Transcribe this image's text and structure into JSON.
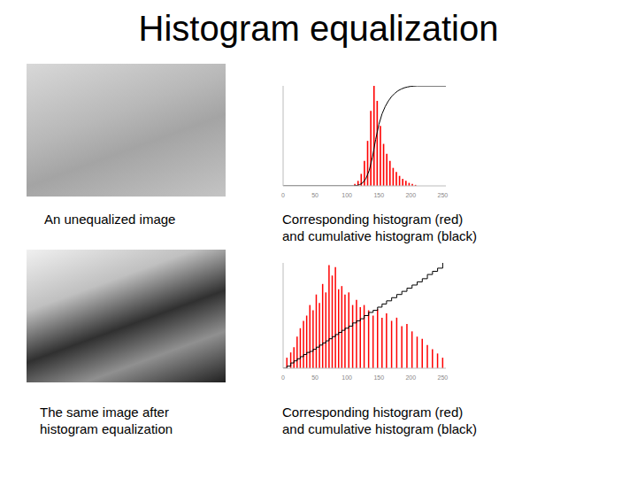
{
  "title": "Histogram equalization",
  "images": [
    {
      "caption": [
        "An unequalized image"
      ]
    },
    {
      "caption": [
        "The same image after",
        "histogram equalization"
      ]
    }
  ],
  "chart_data": [
    {
      "type": "histogram",
      "caption": [
        "Corresponding histogram (red)",
        "and cumulative histogram (black)"
      ],
      "bins": [
        0,
        5,
        10,
        15,
        20,
        25,
        30,
        35,
        40,
        45,
        50,
        55,
        60,
        65,
        70,
        75,
        80,
        85,
        90,
        95,
        100,
        105,
        110,
        115,
        120,
        125,
        130,
        135,
        140,
        145,
        150,
        155,
        160,
        165,
        170,
        175,
        180,
        185,
        190,
        195,
        200,
        205,
        210,
        215,
        220,
        225,
        230,
        235,
        240,
        245,
        250,
        255
      ],
      "values": [
        0,
        0,
        0,
        0,
        0,
        0,
        0,
        0,
        0,
        0,
        0,
        0,
        0,
        0,
        0,
        0,
        0,
        0,
        0,
        0,
        0,
        0,
        2,
        5,
        12,
        25,
        45,
        75,
        100,
        85,
        60,
        42,
        32,
        25,
        18,
        14,
        10,
        7,
        5,
        3,
        2,
        1,
        0,
        0,
        0,
        0,
        0,
        0,
        0,
        0,
        0
      ],
      "color": "#ff0000",
      "xlim": [
        0,
        255
      ],
      "xticks": [
        0,
        50,
        100,
        150,
        200,
        250
      ],
      "ylim": [
        0,
        100
      ],
      "tick_labels": "x",
      "y2lim": [
        0,
        100
      ],
      "cumulative": {
        "x": [
          0,
          110,
          115,
          120,
          125,
          130,
          135,
          140,
          145,
          150,
          155,
          160,
          165,
          170,
          175,
          180,
          185,
          190,
          195,
          200,
          205,
          210,
          255
        ],
        "values": [
          0,
          0,
          0.4,
          1.2,
          3.3,
          7.7,
          15.7,
          28.9,
          46.5,
          61.4,
          72,
          79.4,
          85,
          89.4,
          92.6,
          95.1,
          96.8,
          98.1,
          98.9,
          99.5,
          99.8,
          100,
          100
        ],
        "color": "#000000",
        "axis": "y2",
        "line_style": "solid"
      }
    },
    {
      "type": "histogram",
      "caption": [
        "Corresponding histogram (red)",
        "and cumulative histogram (black)"
      ],
      "x": [
        6,
        12,
        17,
        22,
        27,
        32,
        37,
        42,
        47,
        52,
        57,
        62,
        67,
        72,
        77,
        82,
        87,
        92,
        97,
        103,
        109,
        115,
        121,
        127,
        134,
        141,
        148,
        155,
        162,
        170,
        178,
        186,
        194,
        202,
        210,
        218,
        226,
        234,
        242,
        250
      ],
      "values": [
        10,
        15,
        20,
        30,
        38,
        45,
        50,
        60,
        55,
        70,
        62,
        80,
        72,
        98,
        88,
        96,
        75,
        78,
        70,
        72,
        60,
        65,
        58,
        60,
        55,
        50,
        56,
        48,
        52,
        45,
        48,
        40,
        42,
        35,
        30,
        28,
        22,
        18,
        14,
        10
      ],
      "color": "#ff0000",
      "xlim": [
        0,
        255
      ],
      "xticks": [
        0,
        50,
        100,
        150,
        200,
        250
      ],
      "ylim": [
        0,
        100
      ],
      "tick_labels": "x",
      "y2lim": [
        0,
        100
      ],
      "cumulative": {
        "x": [
          0,
          6,
          12,
          17,
          22,
          27,
          32,
          37,
          42,
          47,
          52,
          57,
          62,
          67,
          72,
          77,
          82,
          87,
          92,
          97,
          103,
          109,
          115,
          121,
          127,
          134,
          141,
          148,
          155,
          162,
          170,
          178,
          186,
          194,
          202,
          210,
          218,
          226,
          234,
          242,
          250
        ],
        "values": [
          0,
          2,
          5,
          7,
          9,
          11,
          13,
          15,
          16,
          18,
          20,
          22,
          24,
          26,
          28,
          30,
          32,
          34,
          36,
          38,
          40,
          43,
          45,
          47,
          50,
          53,
          55,
          58,
          61,
          64,
          67,
          70,
          73,
          76,
          79,
          82,
          85,
          89,
          92,
          95,
          100
        ],
        "color": "#000000",
        "axis": "y2",
        "line_style": "step"
      }
    }
  ]
}
